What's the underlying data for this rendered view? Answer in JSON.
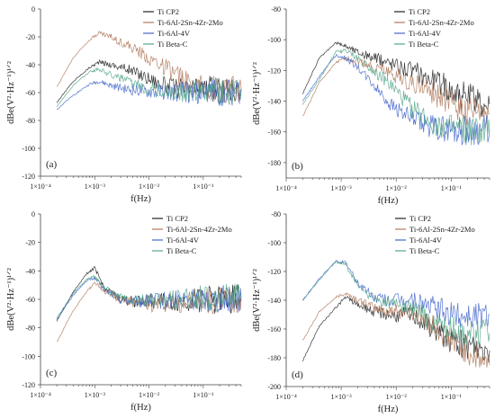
{
  "chart_data": [
    {
      "type": "line",
      "panel": "(a)",
      "xlabel": "f(Hz)",
      "ylabel": "dBe(V²·Hz⁻¹)¹ᐟ²",
      "xscale": "log",
      "xlim": [
        0.0001,
        0.5
      ],
      "ylim": [
        -120,
        0
      ],
      "yticks": [
        0,
        -20,
        -40,
        -60,
        -80,
        -100,
        -120
      ],
      "ytick_labels": [
        "0",
        "-20",
        "-40",
        "-60",
        "-80",
        "-100",
        "-120"
      ],
      "xtick_labels": [
        "1×10⁻⁴",
        "1×10⁻³",
        "1×10⁻²",
        "1×10⁻¹"
      ],
      "xtick_values": [
        0.0001,
        0.001,
        0.01,
        0.1
      ],
      "legend_position": "top-right",
      "series": [
        {
          "name": "Ti CP2",
          "color": "#222222",
          "x": [
            0.0002,
            0.0004,
            0.0008,
            0.0012,
            0.002,
            0.004,
            0.008,
            0.02,
            0.05,
            0.1,
            0.2,
            0.5
          ],
          "y": [
            -67,
            -52,
            -42,
            -38,
            -40,
            -43,
            -48,
            -55,
            -58,
            -57,
            -58,
            -57
          ]
        },
        {
          "name": "Ti-6Al-2Sn-4Zr-2Mo",
          "color": "#b07a5c",
          "x": [
            0.0002,
            0.0004,
            0.0008,
            0.0012,
            0.002,
            0.004,
            0.008,
            0.02,
            0.05,
            0.1,
            0.2,
            0.5
          ],
          "y": [
            -56,
            -35,
            -22,
            -17,
            -20,
            -26,
            -33,
            -42,
            -52,
            -57,
            -58,
            -57
          ]
        },
        {
          "name": "Ti-6Al-4V",
          "color": "#4466cc",
          "x": [
            0.0002,
            0.0004,
            0.0008,
            0.0012,
            0.002,
            0.004,
            0.008,
            0.02,
            0.05,
            0.1,
            0.2,
            0.5
          ],
          "y": [
            -72,
            -62,
            -54,
            -52,
            -55,
            -58,
            -59,
            -60,
            -60,
            -59,
            -60,
            -59
          ]
        },
        {
          "name": "Ti Beta-C",
          "color": "#55a68a",
          "x": [
            0.0002,
            0.0004,
            0.0008,
            0.0012,
            0.002,
            0.004,
            0.008,
            0.02,
            0.05,
            0.1,
            0.2,
            0.5
          ],
          "y": [
            -70,
            -55,
            -45,
            -43,
            -47,
            -52,
            -56,
            -59,
            -60,
            -59,
            -60,
            -59
          ]
        }
      ]
    },
    {
      "type": "line",
      "panel": "(b)",
      "xlabel": "f(Hz)",
      "ylabel": "dBe(V²·Hz⁻¹)¹ᐟ²",
      "xscale": "log",
      "xlim": [
        0.0001,
        0.5
      ],
      "ylim": [
        -190,
        -80
      ],
      "yticks": [
        -80,
        -100,
        -120,
        -140,
        -160,
        -180
      ],
      "ytick_labels": [
        "-80",
        "-100",
        "-120",
        "-140",
        "-160",
        "-180"
      ],
      "xtick_labels": [
        "1×10⁻⁴",
        "1×10⁻³",
        "1×10⁻²",
        "1×10⁻¹"
      ],
      "xtick_values": [
        0.0001,
        0.001,
        0.01,
        0.1
      ],
      "legend_position": "top-right",
      "series": [
        {
          "name": "Ti CP2",
          "color": "#222222",
          "x": [
            0.0002,
            0.0004,
            0.0008,
            0.0012,
            0.002,
            0.004,
            0.008,
            0.02,
            0.05,
            0.1,
            0.2,
            0.5
          ],
          "y": [
            -135,
            -112,
            -102,
            -104,
            -108,
            -112,
            -115,
            -120,
            -126,
            -132,
            -138,
            -142
          ]
        },
        {
          "name": "Ti-6Al-2Sn-4Zr-2Mo",
          "color": "#b07a5c",
          "x": [
            0.0002,
            0.0004,
            0.0008,
            0.0012,
            0.002,
            0.004,
            0.008,
            0.02,
            0.05,
            0.1,
            0.2,
            0.5
          ],
          "y": [
            -150,
            -128,
            -115,
            -112,
            -114,
            -118,
            -122,
            -128,
            -135,
            -142,
            -146,
            -148
          ]
        },
        {
          "name": "Ti-6Al-4V",
          "color": "#4466cc",
          "x": [
            0.0002,
            0.0004,
            0.0008,
            0.0012,
            0.002,
            0.004,
            0.008,
            0.02,
            0.05,
            0.1,
            0.2,
            0.5
          ],
          "y": [
            -140,
            -124,
            -110,
            -112,
            -118,
            -130,
            -142,
            -152,
            -157,
            -158,
            -159,
            -158
          ]
        },
        {
          "name": "Ti Beta-C",
          "color": "#55a68a",
          "x": [
            0.0002,
            0.0004,
            0.0008,
            0.0012,
            0.002,
            0.004,
            0.008,
            0.02,
            0.05,
            0.1,
            0.2,
            0.5
          ],
          "y": [
            -142,
            -126,
            -108,
            -107,
            -112,
            -120,
            -130,
            -145,
            -155,
            -158,
            -160,
            -160
          ]
        }
      ]
    },
    {
      "type": "line",
      "panel": "(c)",
      "xlabel": "f(Hz)",
      "ylabel": "dBe(V²·Hz⁻¹)¹ᐟ²",
      "xscale": "log",
      "xlim": [
        0.0001,
        0.5
      ],
      "ylim": [
        -120,
        0
      ],
      "yticks": [
        0,
        -20,
        -40,
        -60,
        -80,
        -100,
        -120
      ],
      "ytick_labels": [
        "0",
        "-20",
        "-40",
        "-60",
        "-80",
        "-100",
        "-120"
      ],
      "xtick_labels": [
        "1×10⁻⁴",
        "1×10⁻³",
        "1×10⁻²",
        "1×10⁻¹"
      ],
      "xtick_values": [
        0.0001,
        0.001,
        0.01,
        0.1
      ],
      "legend_position": "top-right",
      "series": [
        {
          "name": "Ti CP2",
          "color": "#222222",
          "x": [
            0.0002,
            0.0004,
            0.0007,
            0.001,
            0.0015,
            0.003,
            0.006,
            0.01,
            0.03,
            0.1,
            0.3,
            0.5
          ],
          "y": [
            -75,
            -55,
            -42,
            -38,
            -52,
            -60,
            -62,
            -61,
            -62,
            -60,
            -60,
            -59
          ]
        },
        {
          "name": "Ti-6Al-2Sn-4Zr-2Mo",
          "color": "#b07a5c",
          "x": [
            0.0002,
            0.0004,
            0.0007,
            0.001,
            0.0015,
            0.003,
            0.006,
            0.01,
            0.03,
            0.1,
            0.3,
            0.5
          ],
          "y": [
            -90,
            -68,
            -55,
            -48,
            -54,
            -60,
            -63,
            -64,
            -63,
            -61,
            -60,
            -60
          ]
        },
        {
          "name": "Ti-6Al-4V",
          "color": "#4466cc",
          "x": [
            0.0002,
            0.0004,
            0.0007,
            0.001,
            0.0015,
            0.003,
            0.006,
            0.01,
            0.03,
            0.1,
            0.3,
            0.5
          ],
          "y": [
            -74,
            -57,
            -47,
            -45,
            -53,
            -60,
            -62,
            -61,
            -61,
            -60,
            -59,
            -59
          ]
        },
        {
          "name": "Ti Beta-C",
          "color": "#55a68a",
          "x": [
            0.0002,
            0.0004,
            0.0007,
            0.001,
            0.0015,
            0.003,
            0.006,
            0.01,
            0.03,
            0.1,
            0.3,
            0.5
          ],
          "y": [
            -73,
            -56,
            -46,
            -44,
            -52,
            -59,
            -61,
            -61,
            -60,
            -59,
            -59,
            -58
          ]
        }
      ]
    },
    {
      "type": "line",
      "panel": "(d)",
      "xlabel": "f(Hz)",
      "ylabel": "dBe(V²·Hz⁻¹)¹ᐟ²",
      "xscale": "log",
      "xlim": [
        0.0001,
        0.5
      ],
      "ylim": [
        -200,
        -80
      ],
      "yticks": [
        -80,
        -100,
        -120,
        -140,
        -160,
        -180,
        -200
      ],
      "ytick_labels": [
        "-80",
        "-100",
        "-120",
        "-140",
        "-160",
        "-180",
        "-200"
      ],
      "xtick_labels": [
        "1×10⁻⁴",
        "1×10⁻³",
        "1×10⁻²",
        "1×10⁻¹"
      ],
      "xtick_values": [
        0.0001,
        0.001,
        0.01,
        0.1
      ],
      "legend_position": "top-right",
      "series": [
        {
          "name": "Ti CP2",
          "color": "#222222",
          "x": [
            0.0002,
            0.0004,
            0.0008,
            0.0012,
            0.002,
            0.004,
            0.008,
            0.02,
            0.05,
            0.1,
            0.2,
            0.5
          ],
          "y": [
            -182,
            -158,
            -145,
            -138,
            -143,
            -148,
            -150,
            -150,
            -160,
            -168,
            -172,
            -175
          ]
        },
        {
          "name": "Ti-6Al-2Sn-4Zr-2Mo",
          "color": "#b07a5c",
          "x": [
            0.0002,
            0.0004,
            0.0008,
            0.0012,
            0.002,
            0.004,
            0.008,
            0.02,
            0.05,
            0.1,
            0.2,
            0.5
          ],
          "y": [
            -168,
            -148,
            -138,
            -135,
            -140,
            -145,
            -148,
            -148,
            -158,
            -170,
            -175,
            -185
          ]
        },
        {
          "name": "Ti-6Al-4V",
          "color": "#4466cc",
          "x": [
            0.0002,
            0.0004,
            0.0008,
            0.0012,
            0.002,
            0.004,
            0.008,
            0.02,
            0.05,
            0.1,
            0.2,
            0.5
          ],
          "y": [
            -140,
            -125,
            -113,
            -114,
            -128,
            -138,
            -140,
            -140,
            -145,
            -150,
            -150,
            -150
          ]
        },
        {
          "name": "Ti Beta-C",
          "color": "#55a68a",
          "x": [
            0.0002,
            0.0004,
            0.0008,
            0.0012,
            0.002,
            0.004,
            0.008,
            0.02,
            0.05,
            0.1,
            0.2,
            0.5
          ],
          "y": [
            -140,
            -126,
            -113,
            -115,
            -130,
            -140,
            -142,
            -145,
            -155,
            -160,
            -163,
            -163
          ]
        }
      ]
    }
  ]
}
